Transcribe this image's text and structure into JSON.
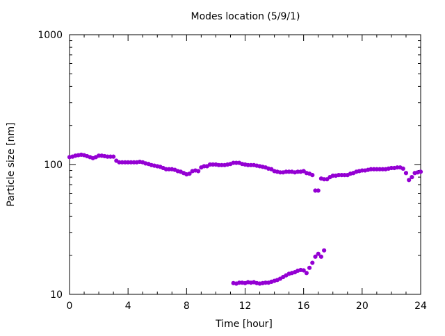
{
  "chart_data": {
    "type": "scatter",
    "title": "Modes location (5/9/1)",
    "xlabel": "Time [hour]",
    "ylabel": "Particle size [nm]",
    "xlim": [
      0,
      24
    ],
    "ylim": [
      10,
      1000
    ],
    "yscale": "log",
    "xticks": [
      "0",
      "4",
      "8",
      "12",
      "16",
      "20",
      "24"
    ],
    "yticks": [
      "10",
      "100",
      "1000"
    ],
    "grid": false,
    "legend": "none",
    "marker_color": "#9400d3",
    "series": [
      {
        "x": [
          0.0,
          0.2,
          0.4,
          0.6,
          0.8,
          1.0,
          1.2,
          1.4,
          1.6,
          1.8,
          2.0,
          2.2,
          2.4,
          2.6,
          2.8,
          3.0,
          3.2,
          3.4,
          3.6,
          3.8,
          4.0,
          4.2,
          4.4,
          4.6,
          4.8,
          5.0,
          5.2,
          5.4,
          5.6,
          5.8,
          6.0,
          6.2,
          6.4,
          6.6,
          6.8,
          7.0,
          7.2,
          7.4,
          7.6,
          7.8,
          8.0,
          8.2,
          8.4,
          8.6,
          8.8,
          9.0,
          9.2,
          9.4,
          9.6,
          9.8,
          10.0,
          10.2,
          10.4,
          10.6,
          10.8,
          11.0,
          11.2,
          11.4,
          11.6,
          11.8,
          12.0,
          12.2,
          12.4,
          12.6,
          12.8,
          13.0,
          13.2,
          13.4,
          13.6,
          13.8,
          14.0,
          14.2,
          14.4,
          14.6,
          14.8,
          15.0,
          15.2,
          15.4,
          15.6,
          15.8,
          16.0,
          16.2,
          16.4,
          16.6,
          16.8,
          17.0,
          17.2,
          17.4,
          17.6,
          17.8,
          18.0,
          18.2,
          18.4,
          18.6,
          18.8,
          19.0,
          19.2,
          19.4,
          19.6,
          19.8,
          20.0,
          20.2,
          20.4,
          20.6,
          20.8,
          21.0,
          21.2,
          21.4,
          21.6,
          21.8,
          22.0,
          22.2,
          22.4,
          22.6,
          22.8,
          23.0,
          23.2,
          23.4,
          23.6,
          23.8,
          24.0
        ],
        "y": [
          114,
          115,
          117,
          118,
          119,
          118,
          116,
          114,
          112,
          114,
          117,
          117,
          116,
          115,
          115,
          115,
          107,
          104,
          104,
          104,
          104,
          104,
          104,
          104,
          105,
          104,
          102,
          101,
          99,
          98,
          97,
          96,
          94,
          92,
          92,
          92,
          91,
          89,
          88,
          86,
          84,
          85,
          89,
          90,
          89,
          95,
          97,
          97,
          100,
          100,
          100,
          99,
          99,
          99,
          100,
          101,
          103,
          103,
          103,
          101,
          100,
          99,
          99,
          99,
          98,
          97,
          96,
          95,
          93,
          92,
          89,
          88,
          87,
          87,
          88,
          88,
          88,
          87,
          88,
          88,
          89,
          86,
          85,
          83,
          63,
          63,
          78,
          77,
          77,
          80,
          82,
          82,
          83,
          83,
          83,
          83,
          85,
          86,
          88,
          89,
          90,
          90,
          91,
          92,
          92,
          92,
          92,
          92,
          92,
          93,
          94,
          94,
          95,
          95,
          93,
          86,
          76,
          80,
          86,
          87,
          88
        ]
      },
      {
        "x": [
          11.2,
          11.4,
          11.6,
          11.8,
          12.0,
          12.2,
          12.4,
          12.6,
          12.8,
          13.0,
          13.2,
          13.4,
          13.6,
          13.8,
          14.0,
          14.2,
          14.4,
          14.6,
          14.8,
          15.0,
          15.2,
          15.4,
          15.6,
          15.8,
          16.0,
          16.2,
          16.4,
          16.6,
          16.8,
          17.0,
          17.2,
          17.4
        ],
        "y": [
          12.2,
          12.1,
          12.3,
          12.3,
          12.2,
          12.4,
          12.3,
          12.4,
          12.2,
          12.1,
          12.2,
          12.3,
          12.3,
          12.5,
          12.7,
          12.9,
          13.2,
          13.6,
          14.0,
          14.4,
          14.6,
          14.8,
          15.2,
          15.4,
          15.3,
          14.6,
          16.0,
          17.5,
          19.5,
          20.5,
          19.5,
          21.8
        ]
      }
    ]
  }
}
